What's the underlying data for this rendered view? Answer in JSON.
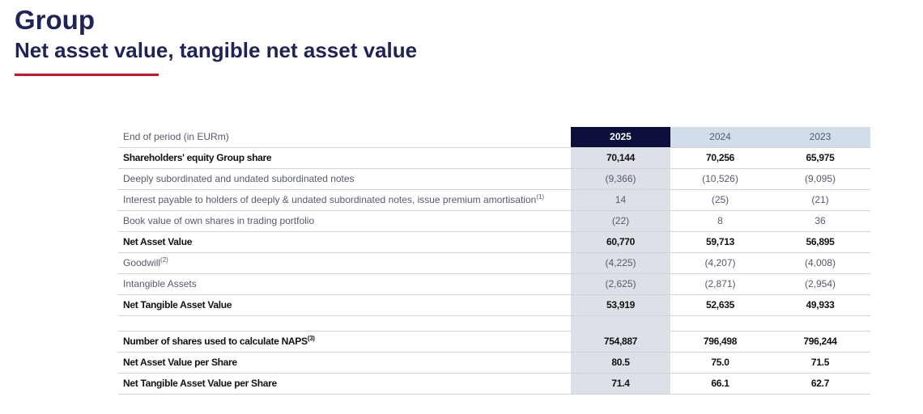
{
  "header": {
    "title": "Group",
    "subtitle": "Net asset value, tangible net asset value"
  },
  "table": {
    "columns": [
      "End of period (in EURm)",
      "2025",
      "2024",
      "2023"
    ],
    "sections": [
      [
        {
          "label": "Shareholders' equity Group share",
          "bold": true,
          "cells": [
            "70,144",
            "70,256",
            "65,975"
          ]
        },
        {
          "label": "Deeply subordinated and undated subordinated notes",
          "cells": [
            "(9,366)",
            "(10,526)",
            "(9,095)"
          ]
        },
        {
          "label": "Interest payable to holders of deeply & undated subordinated notes, issue premium amortisation",
          "note": "(1)",
          "cells": [
            "14",
            "(25)",
            "(21)"
          ]
        },
        {
          "label": "Book value of own shares in trading portfolio",
          "cells": [
            "(22)",
            "8",
            "36"
          ]
        },
        {
          "label": "Net Asset Value",
          "bold": true,
          "cells": [
            "60,770",
            "59,713",
            "56,895"
          ]
        },
        {
          "label": "Goodwill",
          "note": "(2)",
          "cells": [
            "(4,225)",
            "(4,207)",
            "(4,008)"
          ]
        },
        {
          "label": "Intangible Assets",
          "cells": [
            "(2,625)",
            "(2,871)",
            "(2,954)"
          ]
        },
        {
          "label": "Net Tangible Asset Value",
          "bold": true,
          "cells": [
            "53,919",
            "52,635",
            "49,933"
          ]
        }
      ],
      [
        {
          "label": "Number of shares used to calculate NAPS",
          "note": "(3)",
          "bold": true,
          "cells": [
            "754,887",
            "796,498",
            "796,244"
          ]
        },
        {
          "label": "Net Asset Value per Share",
          "bold": true,
          "cells": [
            "80.5",
            "75.0",
            "71.5"
          ]
        },
        {
          "label": "Net Tangible Asset Value per Share",
          "bold": true,
          "cells": [
            "71.4",
            "66.1",
            "62.7"
          ]
        }
      ]
    ]
  }
}
